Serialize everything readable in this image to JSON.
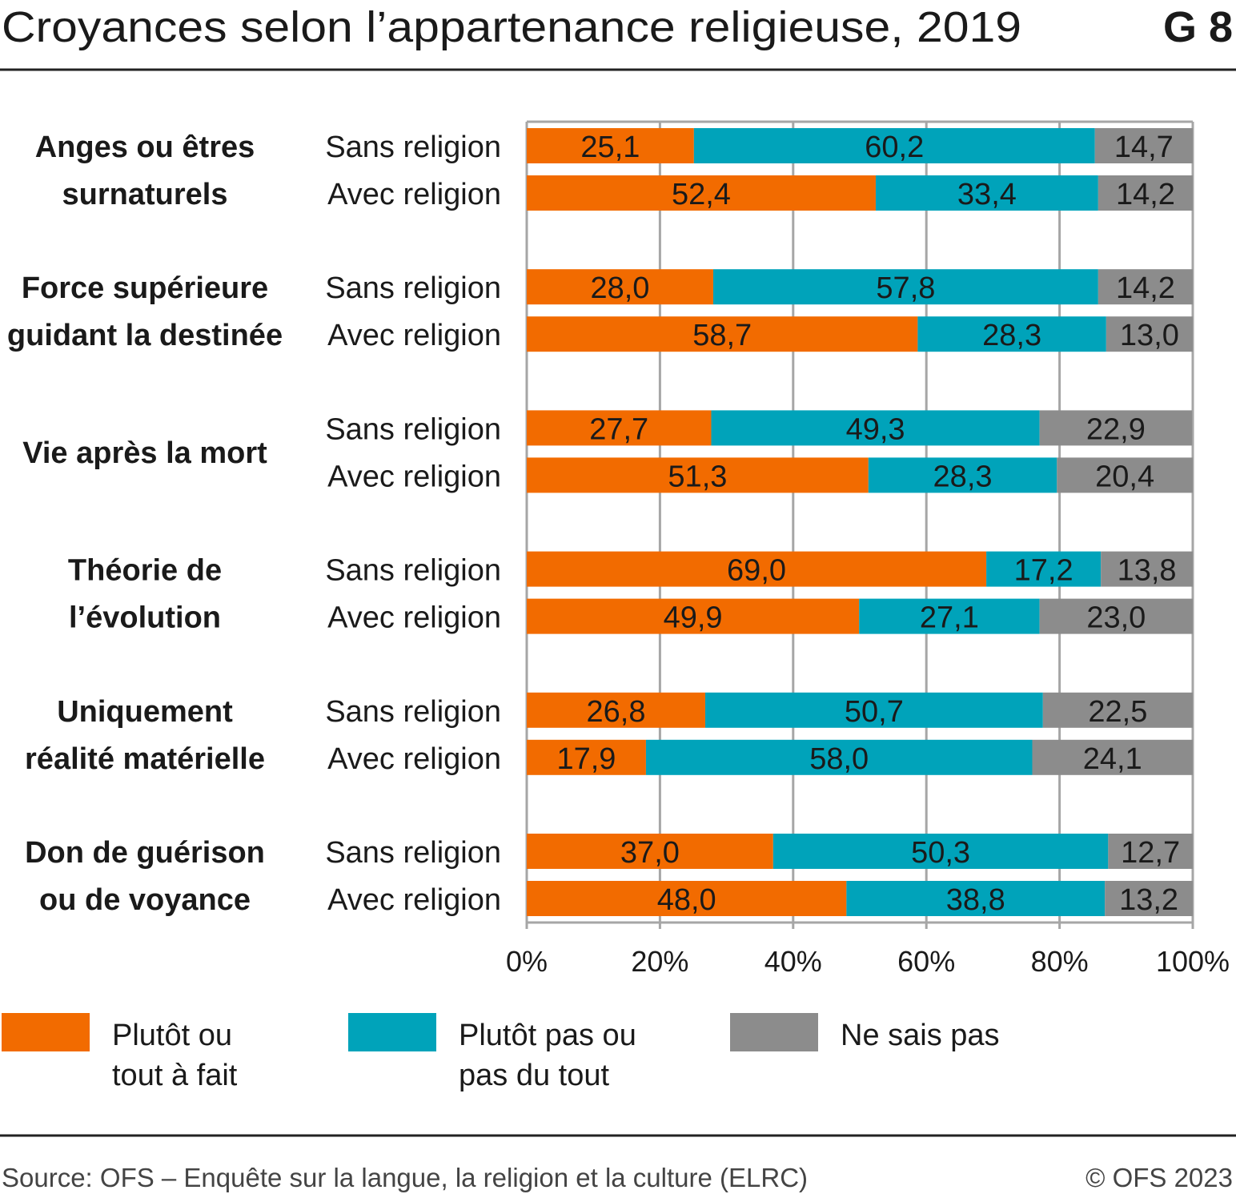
{
  "header": {
    "title": "Croyances selon l’appartenance religieuse, 2019",
    "chart_id": "G 8"
  },
  "footer": {
    "source": "Source: OFS – Enquête sur la langue, la religion et la culture (ELRC)",
    "copyright": "© OFS 2023"
  },
  "chart_data": {
    "type": "bar",
    "orientation": "horizontal",
    "stacked": true,
    "title": "Croyances selon l’appartenance religieuse, 2019",
    "xlim": [
      0,
      100
    ],
    "x_ticks": [
      "0%",
      "20%",
      "40%",
      "60%",
      "80%",
      "100%"
    ],
    "grid": true,
    "legend_position": "bottom",
    "groups": [
      {
        "label": [
          "Anges ou êtres",
          "surnaturels"
        ],
        "rows": [
          {
            "label": "Sans religion",
            "values": [
              25.1,
              60.2,
              14.7
            ],
            "labels": [
              "25,1",
              "60,2",
              "14,7"
            ]
          },
          {
            "label": "Avec religion",
            "values": [
              52.4,
              33.4,
              14.2
            ],
            "labels": [
              "52,4",
              "33,4",
              "14,2"
            ]
          }
        ]
      },
      {
        "label": [
          "Force supérieure",
          "guidant la destinée"
        ],
        "rows": [
          {
            "label": "Sans religion",
            "values": [
              28.0,
              57.8,
              14.2
            ],
            "labels": [
              "28,0",
              "57,8",
              "14,2"
            ]
          },
          {
            "label": "Avec religion",
            "values": [
              58.7,
              28.3,
              13.0
            ],
            "labels": [
              "58,7",
              "28,3",
              "13,0"
            ]
          }
        ]
      },
      {
        "label": [
          "Vie après la mort"
        ],
        "rows": [
          {
            "label": "Sans religion",
            "values": [
              27.7,
              49.3,
              22.9
            ],
            "labels": [
              "27,7",
              "49,3",
              "22,9"
            ]
          },
          {
            "label": "Avec religion",
            "values": [
              51.3,
              28.3,
              20.4
            ],
            "labels": [
              "51,3",
              "28,3",
              "20,4"
            ]
          }
        ]
      },
      {
        "label": [
          "Théorie de",
          "l’évolution"
        ],
        "rows": [
          {
            "label": "Sans religion",
            "values": [
              69.0,
              17.2,
              13.8
            ],
            "labels": [
              "69,0",
              "17,2",
              "13,8"
            ]
          },
          {
            "label": "Avec religion",
            "values": [
              49.9,
              27.1,
              23.0
            ],
            "labels": [
              "49,9",
              "27,1",
              "23,0"
            ]
          }
        ]
      },
      {
        "label": [
          "Uniquement",
          "réalité matérielle"
        ],
        "rows": [
          {
            "label": "Sans religion",
            "values": [
              26.8,
              50.7,
              22.5
            ],
            "labels": [
              "26,8",
              "50,7",
              "22,5"
            ]
          },
          {
            "label": "Avec religion",
            "values": [
              17.9,
              58.0,
              24.1
            ],
            "labels": [
              "17,9",
              "58,0",
              "24,1"
            ]
          }
        ]
      },
      {
        "label": [
          "Don de guérison",
          "ou de voyance"
        ],
        "rows": [
          {
            "label": "Sans religion",
            "values": [
              37.0,
              50.3,
              12.7
            ],
            "labels": [
              "37,0",
              "50,3",
              "12,7"
            ]
          },
          {
            "label": "Avec religion",
            "values": [
              48.0,
              38.8,
              13.2
            ],
            "labels": [
              "48,0",
              "38,8",
              "13,2"
            ]
          }
        ]
      }
    ],
    "series": [
      {
        "name": [
          "Plutôt ou",
          "tout à fait"
        ],
        "color": "#F26B00"
      },
      {
        "name": [
          "Plutôt pas ou",
          "pas du tout"
        ],
        "color": "#00A3BA"
      },
      {
        "name": [
          "Ne sais pas"
        ],
        "color": "#8C8C8C"
      }
    ]
  }
}
